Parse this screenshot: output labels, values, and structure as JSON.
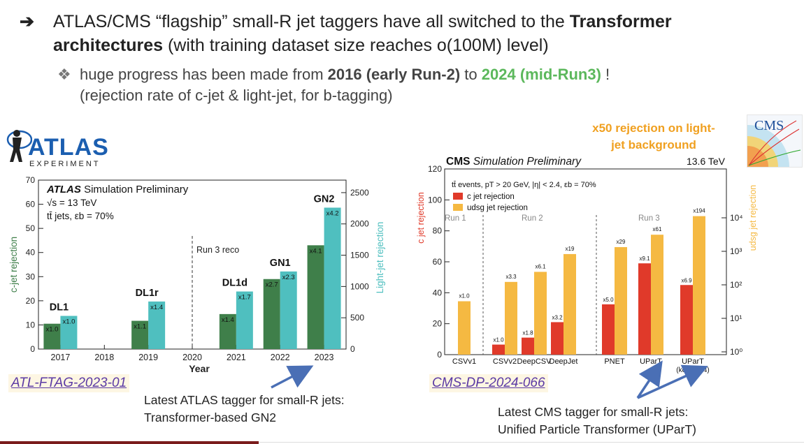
{
  "bullets": {
    "main_arrow": "➔",
    "main_pre": "ATLAS/CMS “flagship” small-R jet taggers have all switched to the ",
    "main_bold": "Transformer architectures",
    "main_post": " (with training dataset size reaches o(100M) level)",
    "sub_diamond": "❖",
    "sub_pre": "huge progress has been made from ",
    "sub_bold": "2016 (early Run-2)",
    "sub_mid": " to ",
    "sub_green": "2024 (mid-Run3)",
    "sub_post": " !",
    "sub_line2": "(rejection rate of c-jet & light-jet, for b-tagging)"
  },
  "atlas_logo": {
    "name": "ATLAS",
    "sub": "EXPERIMENT"
  },
  "links": {
    "atlas": "ATL-FTAG-2023-01",
    "cms": "CMS-DP-2024-066"
  },
  "notes": {
    "atlas_line1": "Latest ATLAS tagger for small-R jets:",
    "atlas_line2": "Transformer-based GN2",
    "cms_line1": "Latest CMS tagger for small-R jets:",
    "cms_line2": "Unified Particle Transformer (UParT)",
    "cms_top_line1": "x50 rejection on light-",
    "cms_top_line2": "jet background"
  },
  "cms_logo": {
    "text": "CMS"
  },
  "chart_data": [
    {
      "type": "bar",
      "title": "ATLAS Simulation Preliminary",
      "title_bold": "ATLAS",
      "title_rest": "Simulation Preliminary",
      "info": [
        "√s = 13 TeV",
        "tt̄ jets, εb = 70%"
      ],
      "xlabel": "Year",
      "ylabel": "c-jet rejection",
      "ylabel_right": "Light-jet rejection",
      "categories": [
        "2017",
        "2018",
        "2019",
        "2020",
        "2021",
        "2022",
        "2023"
      ],
      "ylim": [
        0,
        70
      ],
      "yticks": [
        "0",
        "10",
        "20",
        "30",
        "40",
        "50",
        "60",
        "70"
      ],
      "ylim_right": [
        0,
        2700
      ],
      "yticks_right": [
        "0",
        "500",
        "1000",
        "1500",
        "2000",
        "2500"
      ],
      "run3_label": "Run 3 reco",
      "series": [
        {
          "name": "c-jet rejection",
          "color": "#3f7f4a",
          "points": [
            {
              "tagger": "DL1",
              "x": "2017",
              "value": 10.5,
              "label": "x1.0"
            },
            {
              "tagger": "DL1r",
              "x": "2019",
              "value": 11.7,
              "label": "x1.1"
            },
            {
              "tagger": "DL1d",
              "x": "2021",
              "value": 14.5,
              "label": "x1.4"
            },
            {
              "tagger": "GN1",
              "x": "2022",
              "value": 29,
              "label": "x2.7"
            },
            {
              "tagger": "GN2",
              "x": "2023",
              "value": 43,
              "label": "x4.1"
            }
          ]
        },
        {
          "name": "Light-jet rejection",
          "color": "#4fbfbf",
          "points": [
            {
              "tagger": "DL1",
              "x": "2017",
              "value": 530,
              "label": "x1.0"
            },
            {
              "tagger": "DL1r",
              "x": "2019",
              "value": 760,
              "label": "x1.4"
            },
            {
              "tagger": "DL1d",
              "x": "2021",
              "value": 920,
              "label": "x1.7"
            },
            {
              "tagger": "GN1",
              "x": "2022",
              "value": 1240,
              "label": "x2.3"
            },
            {
              "tagger": "GN2",
              "x": "2023",
              "value": 2260,
              "label": "x4.2"
            }
          ]
        }
      ],
      "tagger_labels": [
        "DL1",
        "DL1r",
        "DL1d",
        "GN1",
        "GN2"
      ]
    },
    {
      "type": "bar",
      "title": "CMS Simulation Preliminary",
      "title_bold": "CMS",
      "title_rest": "Simulation Preliminary",
      "energy": "13.6 TeV",
      "info": "tt̄ events, pT > 20 GeV, |η| < 2.4, εb = 70%",
      "ylabel": "c jet rejection",
      "ylabel_right": "udsg jet rejection",
      "ylim": [
        0,
        120
      ],
      "yticks": [
        "0",
        "20",
        "40",
        "60",
        "80",
        "100",
        "120"
      ],
      "yticks_right_log": [
        "10⁰",
        "10¹",
        "10²",
        "10³",
        "10⁴"
      ],
      "ylim_right_log": [
        1,
        20000
      ],
      "categories": [
        "CSVv1",
        "CSVv2",
        "DeepCSV",
        "DeepJet",
        "PNET",
        "UParT",
        "UParT"
      ],
      "category_sublabel": "(kc = 0.14)",
      "runs": [
        "Run 1",
        "Run 2",
        "Run 3"
      ],
      "series": [
        {
          "name": "c jet rejection",
          "color": "#e03a2a",
          "values": [
            null,
            6.5,
            11,
            21,
            32.5,
            59,
            45
          ],
          "labels": [
            "",
            "x1.0",
            "x1.8",
            "x3.2",
            "x5.0",
            "x9.1",
            "x6.9"
          ]
        },
        {
          "name": "udsg jet rejection",
          "color": "#f5b942",
          "values": [
            34.5,
            47,
            53.5,
            65,
            69.5,
            77.5,
            89.5
          ],
          "labels": [
            "x1.0",
            "x3.3",
            "x6.1",
            "x19",
            "x29",
            "x61",
            "x194"
          ]
        }
      ]
    }
  ]
}
